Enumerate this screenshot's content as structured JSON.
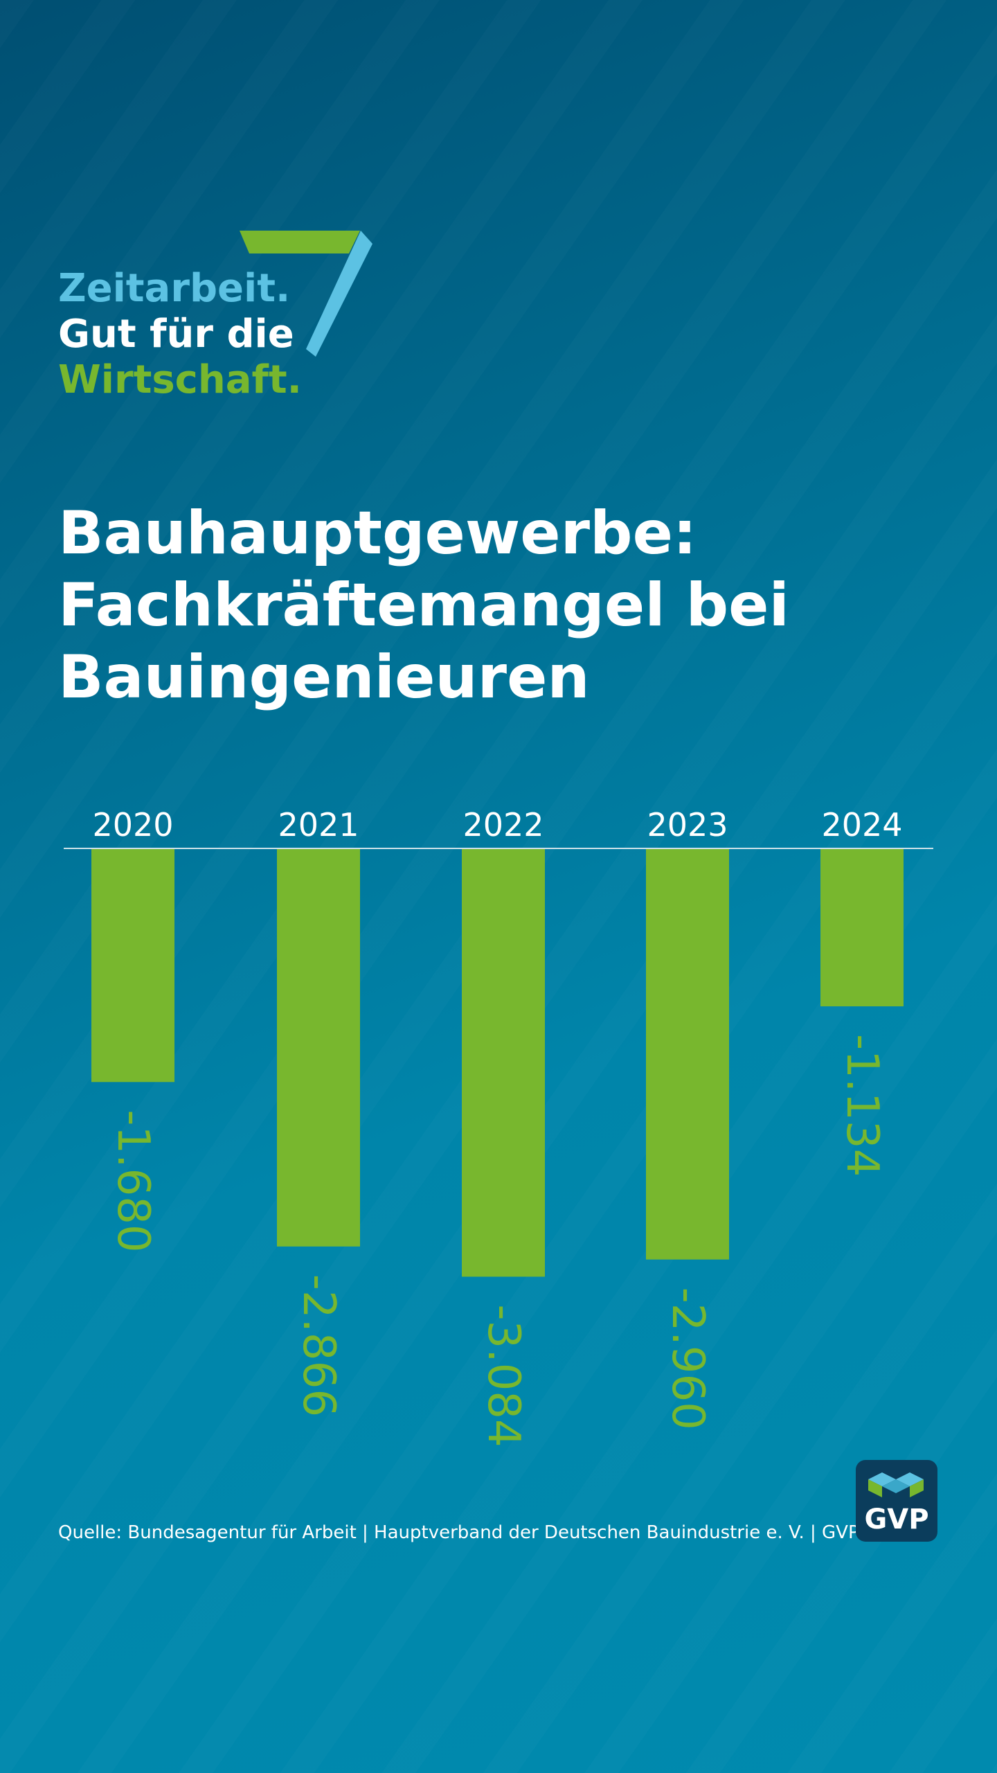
{
  "logo": {
    "line1": "Zeitarbeit.",
    "line2": "Gut für die",
    "line3": "Wirtschaft.",
    "colors": {
      "blue": "#5cc2e3",
      "green": "#78b72e",
      "white": "#ffffff"
    }
  },
  "title": {
    "line1": "Bauhauptgewerbe:",
    "line2": "Fachkräftemangel bei",
    "line3": "Bauingenieuren"
  },
  "chart_data": {
    "type": "bar",
    "categories": [
      "2020",
      "2021",
      "2022",
      "2023",
      "2024"
    ],
    "values": [
      -1680,
      -2866,
      -3084,
      -2960,
      -1134
    ],
    "value_labels": [
      "-1.680",
      "-2.866",
      "-3.084",
      "-2.960",
      "-1.134"
    ],
    "orientation": "bars hang downward from baseline, category labels above baseline, value labels rotated 90°",
    "grid": false,
    "legend": false,
    "bar_color": "#78b72e"
  },
  "source": "Quelle: Bundesagentur für Arbeit | Hauptverband der Deutschen Bauindustrie e. V. | GVP",
  "badge": {
    "text": "GVP",
    "background": "#0b3d5c"
  }
}
